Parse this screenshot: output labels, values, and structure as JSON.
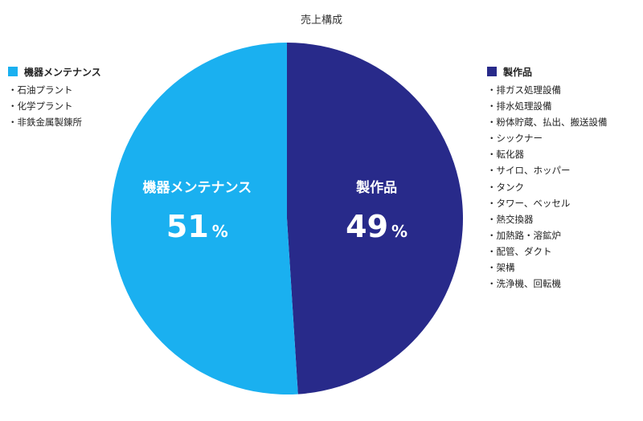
{
  "chart_data": {
    "type": "pie",
    "title": "売上構成",
    "slices": [
      {
        "label": "製作品",
        "value": 49,
        "color": "#282a8a"
      },
      {
        "label": "機器メンテナンス",
        "value": 51,
        "color": "#1ab0f0"
      }
    ],
    "unit": "%",
    "legend": {
      "left": {
        "label": "機器メンテナンス",
        "color": "#1ab0f0",
        "items": [
          "石油プラント",
          "化学プラント",
          "非鉄金属製錬所"
        ]
      },
      "right": {
        "label": "製作品",
        "color": "#282a8a",
        "items": [
          "排ガス処理設備",
          "排水処理設備",
          "粉体貯蔵、払出、搬送設備",
          "シックナー",
          "転化器",
          "サイロ、ホッパー",
          "タンク",
          "タワー、ベッセル",
          "熱交換器",
          "加熱路・溶鉱炉",
          "配管、ダクト",
          "架構",
          "洗浄機、回転機"
        ]
      }
    }
  }
}
